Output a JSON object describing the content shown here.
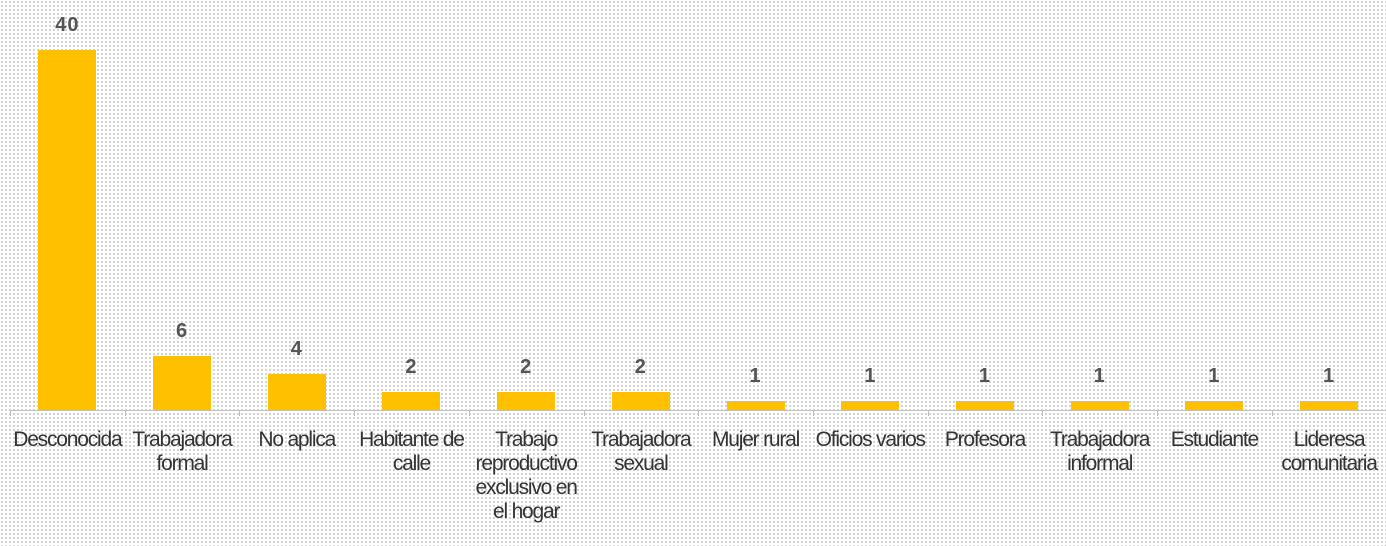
{
  "chart_data": {
    "type": "bar",
    "categories": [
      "Desconocida",
      "Trabajadora formal",
      "No aplica",
      "Habitante de calle",
      "Trabajo reproductivo exclusivo en el hogar",
      "Trabajadora sexual",
      "Mujer rural",
      "Oficios varios",
      "Profesora",
      "Trabajadora informal",
      "Estudiante",
      "Lideresa comunitaria"
    ],
    "values": [
      40,
      6,
      4,
      2,
      2,
      2,
      1,
      1,
      1,
      1,
      1,
      1
    ],
    "color": "#ffc000"
  }
}
